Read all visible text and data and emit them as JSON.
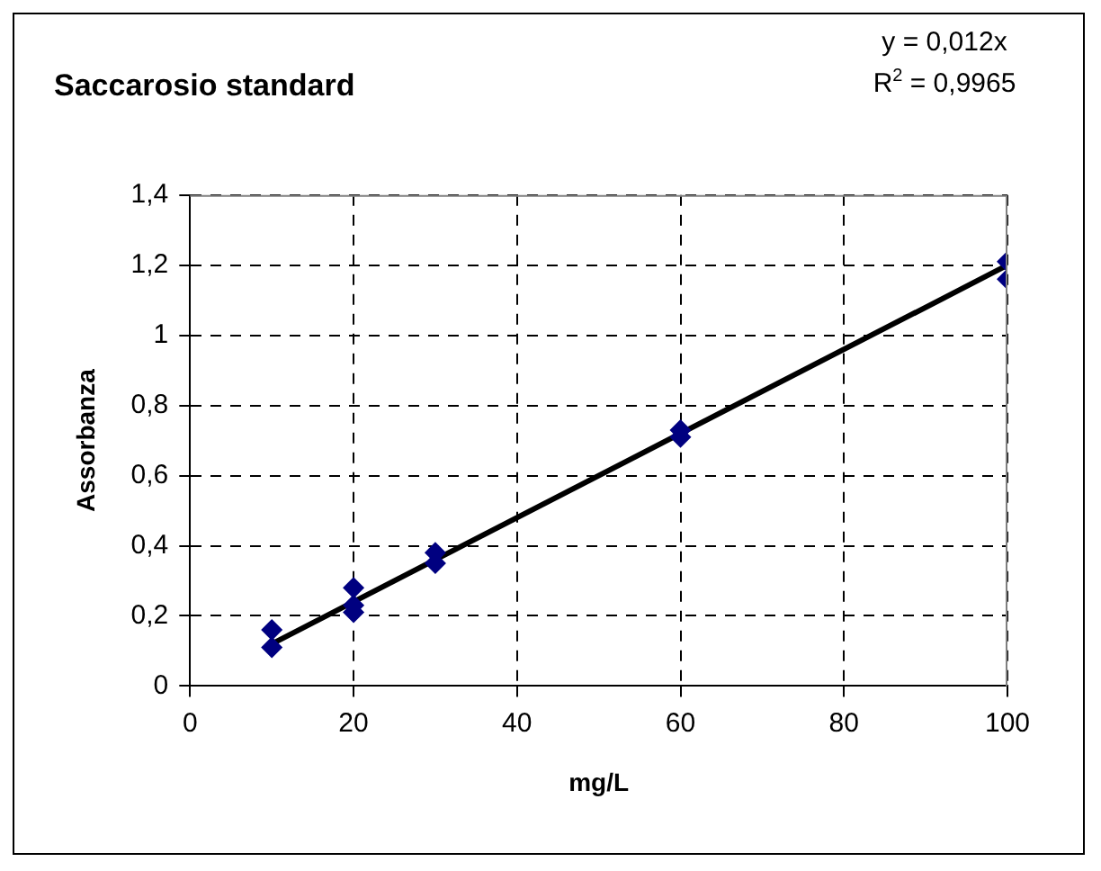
{
  "chart_data": {
    "type": "scatter",
    "title": "Saccarosio standard",
    "xlabel": "mg/L",
    "ylabel": "Assorbanza",
    "annotations": [
      "y = 0,012x",
      "R$^{2}$ = 0,9965"
    ],
    "series": [
      {
        "color": "#000080",
        "marker": "diamond",
        "x": [
          10,
          10,
          20,
          20,
          20,
          30,
          30,
          60,
          60,
          100,
          100
        ],
        "values": [
          0.16,
          0.11,
          0.28,
          0.23,
          0.21,
          0.38,
          0.35,
          0.73,
          0.71,
          1.21,
          1.16
        ]
      },
      {
        "type": "line",
        "color": "#000000",
        "marker": "none",
        "x": [
          10,
          100
        ],
        "values": [
          0.12,
          1.2
        ]
      }
    ],
    "xlim": [
      0,
      100
    ],
    "xticks": [
      0,
      20,
      40,
      60,
      80,
      100
    ],
    "ylim": [
      0,
      1.4
    ],
    "yticks": [
      0,
      {
        "value": 0.2,
        "label": "0,2"
      },
      {
        "value": 0.4,
        "label": "0,4"
      },
      {
        "value": 0.6,
        "label": "0,6"
      },
      {
        "value": 0.8,
        "label": "0,8"
      },
      1,
      {
        "value": 1.2,
        "label": "1,2"
      },
      {
        "value": 1.4,
        "label": "1,4"
      }
    ],
    "grid": true,
    "legend": false,
    "line_style": "solid"
  }
}
